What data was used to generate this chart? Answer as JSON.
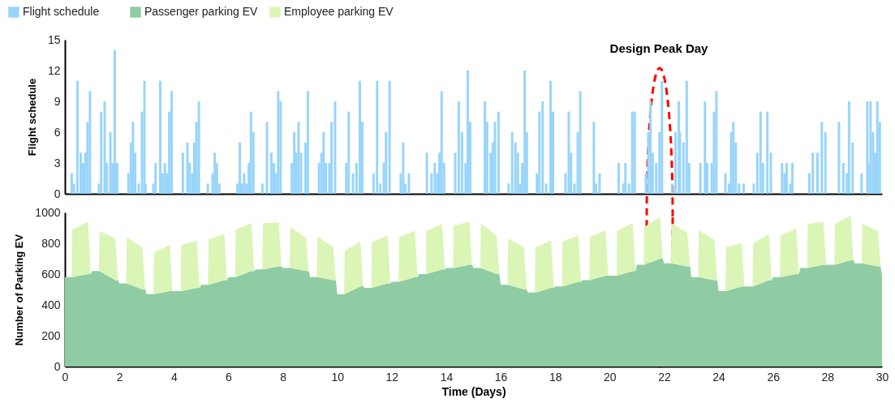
{
  "chart_data": [
    {
      "type": "bar",
      "ylabel": "Flight schedule",
      "xlim": [
        0,
        30
      ],
      "ylim": [
        0,
        15
      ],
      "yticks": [
        0,
        3,
        6,
        9,
        12,
        15
      ],
      "tick_labels": "y",
      "legend": "top left",
      "grid": false,
      "annotations": [
        "Design Peak Day"
      ],
      "series": [
        {
          "name": "Flight schedule",
          "color": "#99d5fa",
          "x": [
            0.25,
            0.33,
            0.46,
            0.58,
            0.67,
            0.75,
            0.83,
            0.92,
            1.25,
            1.33,
            1.46,
            1.54,
            1.67,
            1.75,
            1.83,
            1.92,
            2.33,
            2.42,
            2.5,
            2.58,
            2.71,
            2.83,
            2.92,
            2.96,
            3.25,
            3.33,
            3.5,
            3.58,
            3.67,
            3.75,
            3.83,
            3.92,
            4.33,
            4.5,
            4.58,
            4.67,
            4.75,
            4.83,
            4.92,
            5.25,
            5.42,
            5.5,
            5.58,
            5.67,
            6.33,
            6.42,
            6.5,
            6.58,
            6.67,
            6.75,
            6.83,
            6.92,
            7.25,
            7.42,
            7.58,
            7.67,
            7.75,
            7.83,
            7.92,
            8.33,
            8.42,
            8.5,
            8.58,
            8.67,
            8.83,
            8.92,
            9.33,
            9.42,
            9.5,
            9.58,
            9.71,
            9.79,
            9.92,
            10.33,
            10.42,
            10.58,
            10.71,
            10.83,
            10.92,
            11.33,
            11.46,
            11.58,
            11.71,
            11.79,
            11.92,
            12.33,
            12.42,
            12.5,
            12.63,
            13.29,
            13.46,
            13.58,
            13.67,
            13.75,
            13.83,
            13.92,
            14.33,
            14.46,
            14.58,
            14.71,
            14.79,
            14.88,
            15.42,
            15.5,
            15.63,
            15.71,
            15.79,
            15.92,
            16.29,
            16.42,
            16.54,
            16.63,
            16.71,
            16.79,
            16.88,
            16.96,
            17.33,
            17.42,
            17.54,
            17.67,
            17.83,
            17.92,
            18.38,
            18.5,
            18.58,
            18.71,
            18.83,
            18.92,
            19.42,
            19.5,
            19.63,
            20.33,
            20.5,
            20.58,
            20.71,
            20.83,
            20.92,
            21.33,
            21.42,
            21.5,
            21.58,
            21.71,
            21.83,
            21.92,
            22.29,
            22.42,
            22.54,
            22.58,
            22.71,
            22.83,
            22.92,
            23.33,
            23.5,
            23.58,
            23.75,
            23.83,
            23.92,
            24.25,
            24.38,
            24.46,
            24.54,
            24.63,
            24.75,
            24.92,
            25.29,
            25.42,
            25.54,
            25.63,
            25.79,
            25.92,
            26.33,
            26.42,
            26.5,
            26.63,
            26.71,
            27.33,
            27.46,
            27.63,
            27.79,
            27.92,
            28.42,
            28.58,
            28.71,
            28.79,
            28.92,
            29.25,
            29.46,
            29.5,
            29.58,
            29.67,
            29.75,
            29.83,
            29.92
          ],
          "values": [
            2,
            1,
            11,
            4,
            3,
            4,
            7,
            10,
            1,
            8,
            9,
            3,
            6,
            3,
            14,
            3,
            2,
            5,
            7,
            4,
            1,
            8,
            11,
            1,
            1,
            3,
            11,
            2,
            3,
            2,
            8,
            10,
            4,
            5,
            3,
            2,
            5,
            7,
            9,
            1,
            2,
            4,
            3,
            1,
            1,
            5,
            1,
            2,
            1,
            3,
            8,
            6,
            1,
            7,
            4,
            3,
            2,
            10,
            9,
            3,
            6,
            4,
            7,
            4,
            5,
            10,
            3,
            4,
            6,
            3,
            3,
            7,
            9,
            3,
            8,
            2,
            3,
            11,
            7,
            2,
            11,
            1,
            3,
            6,
            11,
            2,
            5,
            1,
            2,
            4,
            2,
            3,
            2,
            4,
            10,
            3,
            4,
            9,
            6,
            3,
            12,
            7,
            9,
            7,
            4,
            5,
            7,
            8,
            1,
            6,
            5,
            4,
            1,
            3,
            12,
            6,
            2,
            8,
            9,
            1,
            11,
            8,
            2,
            8,
            4,
            1,
            6,
            10,
            7,
            1,
            2,
            3,
            1,
            3,
            1,
            8,
            8,
            2,
            6,
            9,
            4,
            3,
            6,
            11,
            1,
            6,
            9,
            6,
            5,
            11,
            3,
            3,
            9,
            3,
            3,
            8,
            10,
            2,
            1,
            6,
            7,
            5,
            1,
            1,
            1,
            4,
            8,
            3,
            8,
            4,
            3,
            2,
            3,
            1,
            3,
            2,
            4,
            4,
            7,
            6,
            7,
            3,
            2,
            9,
            5,
            2,
            9,
            3,
            9,
            6,
            4,
            9,
            7
          ]
        }
      ]
    },
    {
      "type": "area",
      "stacked": true,
      "xlabel": "Time (Days)",
      "ylabel": "Number of Parking EV",
      "xlim": [
        0,
        30
      ],
      "xticks": [
        0,
        2,
        4,
        6,
        8,
        10,
        12,
        14,
        16,
        18,
        20,
        22,
        24,
        26,
        28,
        30
      ],
      "ylim": [
        0,
        1000
      ],
      "yticks": [
        0,
        200,
        400,
        600,
        800,
        1000
      ],
      "legend": "top left",
      "grid": false,
      "x": [
        0,
        0.25,
        0.27,
        0.85,
        0.95,
        1,
        1.25,
        1.27,
        1.85,
        1.95,
        2,
        2.25,
        2.27,
        2.85,
        2.95,
        3,
        3.25,
        3.27,
        3.85,
        3.95,
        4,
        4.25,
        4.27,
        4.85,
        4.95,
        5,
        5.25,
        5.27,
        5.85,
        5.95,
        6,
        6.25,
        6.27,
        6.85,
        6.95,
        7,
        7.25,
        7.27,
        7.85,
        7.95,
        8,
        8.25,
        8.27,
        8.85,
        8.95,
        9,
        9.25,
        9.27,
        9.85,
        9.95,
        10,
        10.25,
        10.27,
        10.85,
        10.95,
        11,
        11.25,
        11.27,
        11.85,
        11.95,
        12,
        12.25,
        12.27,
        12.85,
        12.95,
        13,
        13.25,
        13.27,
        13.85,
        13.95,
        14,
        14.25,
        14.27,
        14.85,
        14.95,
        15,
        15.25,
        15.27,
        15.85,
        15.95,
        16,
        16.25,
        16.27,
        16.85,
        16.95,
        17,
        17.25,
        17.27,
        17.85,
        17.95,
        18,
        18.25,
        18.27,
        18.85,
        18.95,
        19,
        19.25,
        19.27,
        19.85,
        19.95,
        20,
        20.25,
        20.27,
        20.85,
        20.95,
        21,
        21.25,
        21.27,
        21.85,
        21.95,
        22,
        22.25,
        22.27,
        22.85,
        22.95,
        23,
        23.25,
        23.27,
        23.85,
        23.95,
        24,
        24.25,
        24.27,
        24.85,
        24.95,
        25,
        25.25,
        25.27,
        25.85,
        25.95,
        26,
        26.25,
        26.27,
        26.85,
        26.95,
        27,
        27.25,
        27.27,
        27.85,
        27.95,
        28,
        28.25,
        28.27,
        28.85,
        28.95,
        29,
        29.25,
        29.27,
        29.85,
        29.95,
        30
      ],
      "series": [
        {
          "name": "Passenger parking EV",
          "color": "#8fcca3",
          "values": [
            580,
            580,
            580,
            600,
            600,
            620,
            620,
            620,
            560,
            560,
            540,
            540,
            540,
            500,
            500,
            470,
            470,
            470,
            490,
            490,
            490,
            490,
            490,
            510,
            510,
            530,
            530,
            530,
            560,
            560,
            580,
            580,
            580,
            620,
            620,
            630,
            630,
            630,
            650,
            650,
            640,
            640,
            640,
            620,
            620,
            580,
            580,
            580,
            560,
            560,
            470,
            470,
            470,
            520,
            520,
            510,
            510,
            510,
            540,
            540,
            550,
            550,
            550,
            580,
            580,
            600,
            600,
            600,
            630,
            630,
            640,
            640,
            640,
            660,
            660,
            640,
            640,
            640,
            600,
            600,
            530,
            530,
            530,
            500,
            500,
            480,
            480,
            480,
            510,
            510,
            520,
            520,
            520,
            550,
            550,
            560,
            560,
            560,
            590,
            590,
            590,
            590,
            590,
            620,
            620,
            660,
            660,
            660,
            700,
            700,
            670,
            670,
            670,
            650,
            650,
            580,
            580,
            580,
            560,
            560,
            490,
            490,
            490,
            520,
            520,
            520,
            520,
            520,
            560,
            560,
            580,
            580,
            580,
            600,
            600,
            640,
            640,
            640,
            660,
            660,
            660,
            660,
            660,
            690,
            690,
            670,
            670,
            670,
            650,
            650,
            590
          ]
        },
        {
          "name": "Employee parking EV",
          "color": "#dbf5b6",
          "values": [
            0,
            0,
            310,
            340,
            0,
            0,
            0,
            260,
            270,
            0,
            0,
            0,
            300,
            270,
            0,
            0,
            0,
            270,
            300,
            0,
            0,
            0,
            300,
            305,
            0,
            0,
            0,
            295,
            300,
            0,
            0,
            0,
            310,
            310,
            0,
            0,
            0,
            300,
            285,
            0,
            0,
            0,
            265,
            215,
            0,
            0,
            0,
            265,
            215,
            0,
            0,
            0,
            280,
            290,
            0,
            0,
            0,
            295,
            310,
            0,
            0,
            0,
            290,
            300,
            0,
            0,
            0,
            280,
            295,
            0,
            0,
            0,
            275,
            280,
            0,
            0,
            0,
            290,
            250,
            0,
            0,
            0,
            300,
            275,
            0,
            0,
            0,
            290,
            310,
            0,
            0,
            0,
            290,
            300,
            0,
            0,
            0,
            280,
            295,
            0,
            0,
            0,
            290,
            310,
            0,
            0,
            0,
            245,
            270,
            0,
            0,
            0,
            260,
            220,
            0,
            0,
            0,
            305,
            260,
            0,
            0,
            0,
            285,
            280,
            0,
            0,
            0,
            280,
            300,
            0,
            0,
            0,
            270,
            295,
            0,
            0,
            0,
            285,
            280,
            0,
            0,
            0,
            265,
            290,
            0,
            0,
            0,
            255,
            230,
            0,
            0
          ]
        }
      ]
    }
  ]
}
